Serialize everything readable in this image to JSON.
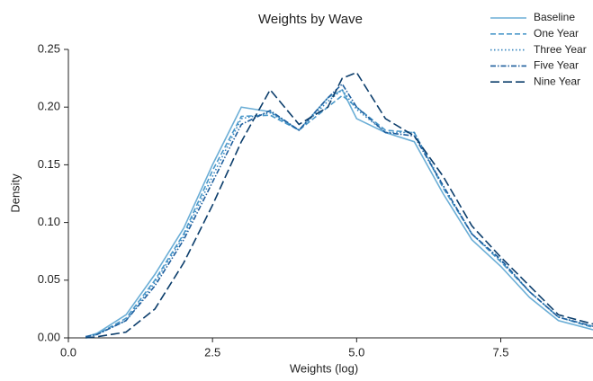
{
  "chart_data": {
    "type": "line",
    "title": "Weights by Wave",
    "x_label": "Weights (log)",
    "y_label": "Density",
    "x": [
      0.3,
      0.5,
      1,
      1.5,
      2,
      2.5,
      3,
      3.5,
      4,
      4.5,
      4.75,
      5,
      5.5,
      6,
      6.5,
      7,
      7.5,
      8,
      8.5,
      9.1
    ],
    "series": [
      {
        "name": "Baseline",
        "color": "#6baed6",
        "linestyle": "solid",
        "values": [
          0.001,
          0.004,
          0.02,
          0.055,
          0.095,
          0.15,
          0.2,
          0.196,
          0.18,
          0.208,
          0.215,
          0.19,
          0.178,
          0.17,
          0.125,
          0.085,
          0.062,
          0.035,
          0.015,
          0.007
        ]
      },
      {
        "name": "One Year",
        "color": "#4a98c9",
        "linestyle": "dashed",
        "values": [
          0.001,
          0.003,
          0.017,
          0.05,
          0.09,
          0.145,
          0.192,
          0.193,
          0.18,
          0.2,
          0.21,
          0.2,
          0.18,
          0.178,
          0.13,
          0.09,
          0.066,
          0.04,
          0.018,
          0.009
        ]
      },
      {
        "name": "Three Year",
        "color": "#3182bd",
        "linestyle": "dotted",
        "values": [
          0.001,
          0.003,
          0.015,
          0.048,
          0.088,
          0.14,
          0.19,
          0.195,
          0.18,
          0.205,
          0.215,
          0.198,
          0.178,
          0.178,
          0.132,
          0.09,
          0.067,
          0.04,
          0.018,
          0.01
        ]
      },
      {
        "name": "Five Year",
        "color": "#1f5f9e",
        "linestyle": "dashdot",
        "values": [
          0.001,
          0.003,
          0.015,
          0.045,
          0.085,
          0.135,
          0.185,
          0.197,
          0.18,
          0.208,
          0.22,
          0.2,
          0.178,
          0.175,
          0.132,
          0.09,
          0.068,
          0.04,
          0.018,
          0.01
        ]
      },
      {
        "name": "Nine Year",
        "color": "#0b3d6b",
        "linestyle": "longdash",
        "values": [
          0.0,
          0.001,
          0.005,
          0.025,
          0.065,
          0.115,
          0.17,
          0.215,
          0.185,
          0.2,
          0.225,
          0.23,
          0.19,
          0.175,
          0.14,
          0.097,
          0.07,
          0.045,
          0.02,
          0.012
        ]
      }
    ],
    "xlim": [
      0,
      9.1
    ],
    "ylim": [
      0,
      0.25
    ],
    "xticks": [
      {
        "value": 0,
        "label": "0.0"
      },
      2.5,
      {
        "value": 5,
        "label": "5.0"
      },
      7.5
    ],
    "yticks": [
      {
        "value": 0,
        "label": "0.00"
      },
      0.05,
      {
        "value": 0.1,
        "label": "0.10"
      },
      0.15,
      {
        "value": 0.2,
        "label": "0.20"
      },
      0.25
    ],
    "grid": false,
    "legend": "upper right"
  }
}
